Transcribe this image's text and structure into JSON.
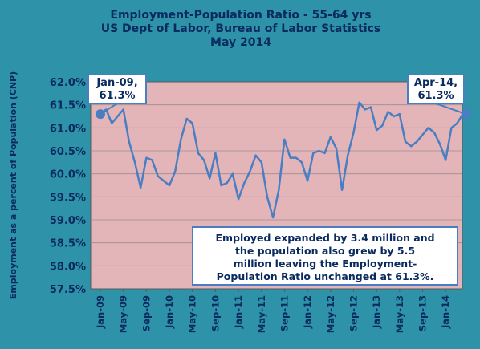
{
  "chart_data": {
    "type": "line",
    "title": "Employment-Population Ratio - 55-64 yrs",
    "subtitle": "US Dept of Labor, Bureau of Labor Statistics",
    "date_line": "May 2014",
    "ylabel": "Employment as a percent of Population (CNP)",
    "xlabel": "",
    "ylim": [
      57.5,
      62.0
    ],
    "y_ticks": [
      "57.5%",
      "58.0%",
      "58.5%",
      "59.0%",
      "59.5%",
      "60.0%",
      "60.5%",
      "61.0%",
      "61.5%",
      "62.0%"
    ],
    "x_ticks": [
      "Jan-09",
      "May-09",
      "Sep-09",
      "Jan-10",
      "May-10",
      "Sep-10",
      "Jan-11",
      "May-11",
      "Sep-11",
      "Jan-12",
      "May-12",
      "Sep-12",
      "Jan-13",
      "May-13",
      "Sep-13",
      "Jan-14"
    ],
    "grid": true,
    "series": [
      {
        "color": "#4a7ec2",
        "x": [
          "Jan-09",
          "Feb-09",
          "Mar-09",
          "Apr-09",
          "May-09",
          "Jun-09",
          "Jul-09",
          "Aug-09",
          "Sep-09",
          "Oct-09",
          "Nov-09",
          "Dec-09",
          "Jan-10",
          "Feb-10",
          "Mar-10",
          "Apr-10",
          "May-10",
          "Jun-10",
          "Jul-10",
          "Aug-10",
          "Sep-10",
          "Oct-10",
          "Nov-10",
          "Dec-10",
          "Jan-11",
          "Feb-11",
          "Mar-11",
          "Apr-11",
          "May-11",
          "Jun-11",
          "Jul-11",
          "Aug-11",
          "Sep-11",
          "Oct-11",
          "Nov-11",
          "Dec-11",
          "Jan-12",
          "Feb-12",
          "Mar-12",
          "Apr-12",
          "May-12",
          "Jun-12",
          "Jul-12",
          "Aug-12",
          "Sep-12",
          "Oct-12",
          "Nov-12",
          "Dec-12",
          "Jan-13",
          "Feb-13",
          "Mar-13",
          "Apr-13",
          "May-13",
          "Jun-13",
          "Jul-13",
          "Aug-13",
          "Sep-13",
          "Oct-13",
          "Nov-13",
          "Dec-13",
          "Jan-14",
          "Feb-14",
          "Mar-14",
          "Apr-14"
        ],
        "values": [
          61.3,
          61.4,
          61.1,
          61.25,
          61.4,
          60.7,
          60.25,
          59.7,
          60.35,
          60.3,
          59.95,
          59.85,
          59.75,
          60.05,
          60.75,
          61.2,
          61.1,
          60.45,
          60.3,
          59.9,
          60.45,
          59.75,
          59.8,
          60.0,
          59.45,
          59.8,
          60.05,
          60.4,
          60.25,
          59.5,
          59.05,
          59.65,
          60.75,
          60.35,
          60.35,
          60.25,
          59.85,
          60.45,
          60.5,
          60.45,
          60.8,
          60.55,
          59.65,
          60.4,
          60.9,
          61.55,
          61.4,
          61.45,
          60.95,
          61.05,
          61.35,
          61.25,
          61.3,
          60.7,
          60.6,
          60.7,
          60.85,
          61.0,
          60.9,
          60.65,
          60.3,
          61.0,
          61.1,
          61.3
        ]
      }
    ],
    "start_callout": {
      "lines": [
        "Jan-09,",
        "61.3%"
      ]
    },
    "end_callout": {
      "lines": [
        "Apr-14,",
        "61.3%"
      ]
    },
    "annotation": {
      "lines": [
        "Employed expanded by 3.4 million and",
        "the population also grew by 5.5",
        "million leaving the Employment-",
        "Population Ratio unchanged at 61.3%."
      ]
    },
    "colors": {
      "background": "#2e93a8",
      "plot_area": "#e4b5b8",
      "line": "#4a7ec2",
      "text": "#0a2a60",
      "grid": "#9c8c90"
    }
  }
}
